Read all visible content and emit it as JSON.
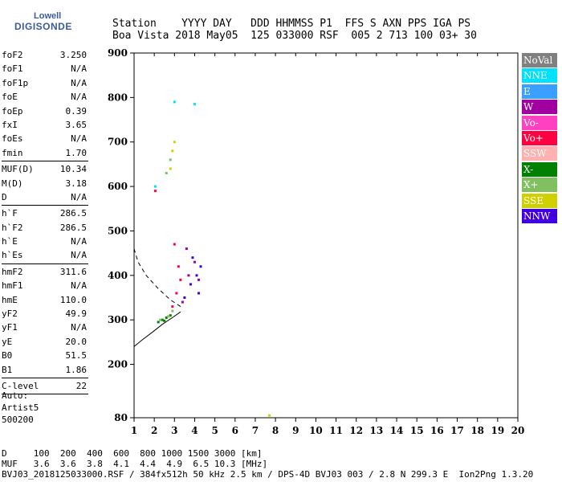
{
  "logo": {
    "line1": "Lowell",
    "line2": "DIGISONDE"
  },
  "header": {
    "labels": "Station    YYYY DAY   DDD HHMMSS P1  FFS S AXN PPS IGA PS",
    "values": "Boa Vista 2018 May05  125 033000 RSF  005 2 713 100 03+ 30"
  },
  "params": [
    {
      "k": "foF2",
      "v": "3.250"
    },
    {
      "k": "foF1",
      "v": "N/A"
    },
    {
      "k": "foF1p",
      "v": "N/A"
    },
    {
      "k": "foE",
      "v": "N/A"
    },
    {
      "k": "foEp",
      "v": "0.39"
    },
    {
      "k": "fxI",
      "v": "3.65"
    },
    {
      "k": "foEs",
      "v": "N/A"
    },
    {
      "k": "fmin",
      "v": "1.70"
    },
    {
      "sep": true
    },
    {
      "k": "MUF(D)",
      "v": "10.34"
    },
    {
      "k": "M(D)",
      "v": "3.18"
    },
    {
      "k": "D",
      "v": "N/A"
    },
    {
      "sep": true
    },
    {
      "k": "h`F",
      "v": "286.5"
    },
    {
      "k": "h`F2",
      "v": "286.5"
    },
    {
      "k": "h`E",
      "v": "N/A"
    },
    {
      "k": "h`Es",
      "v": "N/A"
    },
    {
      "sep": true
    },
    {
      "k": "hmF2",
      "v": "311.6"
    },
    {
      "k": "hmF1",
      "v": "N/A"
    },
    {
      "k": "hmE",
      "v": "110.0"
    },
    {
      "k": "yF2",
      "v": "49.9"
    },
    {
      "k": "yF1",
      "v": "N/A"
    },
    {
      "k": "yE",
      "v": "20.0"
    },
    {
      "k": "B0",
      "v": "51.5"
    },
    {
      "k": "B1",
      "v": "1.86"
    },
    {
      "sep": true
    },
    {
      "k": "C-level",
      "v": "22"
    },
    {
      "sep": true
    }
  ],
  "auto": {
    "line1": "Auto:",
    "line2": "Artist5",
    "line3": "500200"
  },
  "legend": [
    {
      "label": "NoVal",
      "color": "#808080"
    },
    {
      "label": "NNE",
      "color": "#00e0ff"
    },
    {
      "label": "E",
      "color": "#3aa0ff"
    },
    {
      "label": "W",
      "color": "#a000a0"
    },
    {
      "label": "Vo-",
      "color": "#ff40c0"
    },
    {
      "label": "Vo+",
      "color": "#ff0040"
    },
    {
      "label": "SSW",
      "color": "#ffb0b0"
    },
    {
      "label": "X-",
      "color": "#008000"
    },
    {
      "label": "X+",
      "color": "#80c060"
    },
    {
      "label": "SSE",
      "color": "#d0d000"
    },
    {
      "label": "NNW",
      "color": "#4000e0"
    }
  ],
  "footer": {
    "d_line": "D     100  200  400  600  800 1000 1500 3000 [km]",
    "muf_line": "MUF   3.6  3.6  3.8  4.1  4.4  4.9  6.5 10.3 [MHz]",
    "info_line": "BVJ03_2018125033000.RSF / 384fx512h 50 kHz 2.5 km / DPS-4D BVJ03 003 / 2.8 N 299.3 E  Ion2Png 1.3.20"
  },
  "chart_data": {
    "type": "scatter",
    "xlim": [
      1,
      20
    ],
    "ylim": [
      80,
      900
    ],
    "x_ticks": [
      1,
      2,
      3,
      4,
      5,
      6,
      7,
      8,
      9,
      10,
      11,
      12,
      13,
      14,
      15,
      16,
      17,
      18,
      19,
      20
    ],
    "y_ticks": [
      80,
      200,
      300,
      400,
      500,
      600,
      700,
      800,
      900
    ],
    "series": [
      {
        "name": "X-",
        "color": "#008000",
        "points": [
          [
            2.2,
            295
          ],
          [
            2.4,
            300
          ],
          [
            2.6,
            305
          ],
          [
            2.8,
            310
          ],
          [
            2.5,
            298
          ]
        ]
      },
      {
        "name": "X+",
        "color": "#80c060",
        "points": [
          [
            2.3,
            300
          ],
          [
            2.7,
            308
          ],
          [
            2.9,
            320
          ],
          [
            2.6,
            630
          ],
          [
            2.8,
            660
          ]
        ]
      },
      {
        "name": "Vo+",
        "color": "#ff0040",
        "points": [
          [
            2.9,
            330
          ],
          [
            3.1,
            360
          ],
          [
            3.2,
            420
          ],
          [
            3.0,
            470
          ],
          [
            3.3,
            390
          ],
          [
            2.05,
            590
          ]
        ]
      },
      {
        "name": "NNW",
        "color": "#4000e0",
        "points": [
          [
            3.5,
            350
          ],
          [
            3.8,
            380
          ],
          [
            4.1,
            400
          ],
          [
            4.3,
            420
          ],
          [
            3.9,
            440
          ],
          [
            4.2,
            360
          ]
        ]
      },
      {
        "name": "W",
        "color": "#a000a0",
        "points": [
          [
            3.4,
            340
          ],
          [
            3.7,
            400
          ],
          [
            4.0,
            430
          ],
          [
            4.2,
            390
          ],
          [
            3.6,
            460
          ]
        ]
      },
      {
        "name": "SSE",
        "color": "#d0d000",
        "points": [
          [
            2.8,
            640
          ],
          [
            3.0,
            700
          ],
          [
            2.9,
            680
          ],
          [
            7.7,
            85
          ]
        ]
      },
      {
        "name": "NNE",
        "color": "#00e0ff",
        "points": [
          [
            2.05,
            600
          ],
          [
            4.0,
            785
          ],
          [
            3.0,
            790
          ]
        ]
      }
    ],
    "curves": {
      "dashed": [
        [
          1,
          460
        ],
        [
          1.2,
          430
        ],
        [
          1.6,
          400
        ],
        [
          2.2,
          370
        ],
        [
          2.8,
          345
        ],
        [
          3.3,
          330
        ]
      ],
      "solid": [
        [
          1,
          240
        ],
        [
          1.4,
          255
        ],
        [
          1.9,
          272
        ],
        [
          2.4,
          290
        ],
        [
          2.9,
          305
        ],
        [
          3.3,
          318
        ]
      ]
    }
  }
}
